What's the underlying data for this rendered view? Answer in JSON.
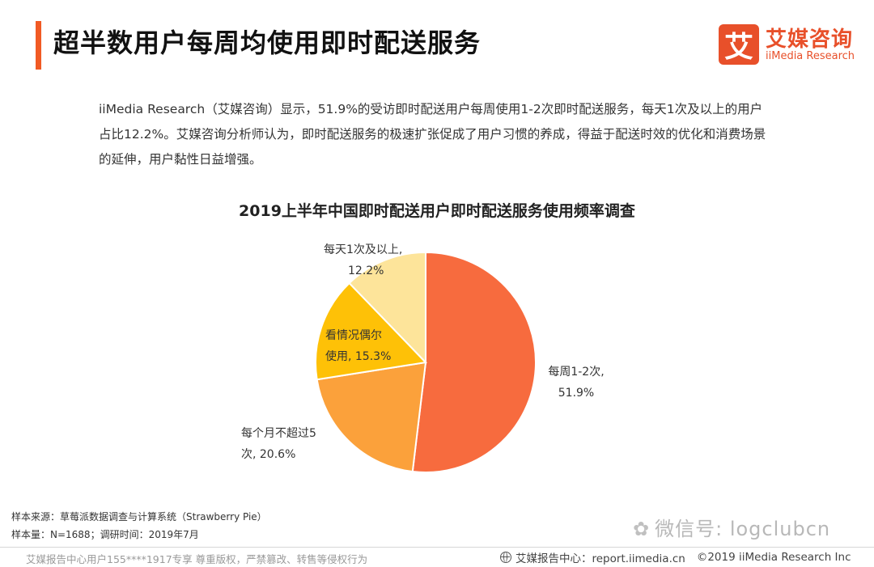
{
  "header": {
    "title": "超半数用户每周均使用即时配送服务",
    "logo_mark": "艾",
    "logo_cn": "艾媒咨询",
    "logo_en": "iiMedia Research"
  },
  "summary": "iiMedia Research（艾媒咨询）显示，51.9%的受访即时配送用户每周使用1-2次即时配送服务，每天1次及以上的用户占比12.2%。艾媒咨询分析师认为，即时配送服务的极速扩张促成了用户习惯的养成，得益于配送时效的优化和消费场景的延伸，用户黏性日益增强。",
  "chart_data": {
    "type": "pie",
    "title": "2019上半年中国即时配送用户即时配送服务使用频率调查",
    "unit": "%",
    "slices": [
      {
        "label": "每周1-2次,",
        "value": 51.9,
        "color": "#f76b3e"
      },
      {
        "label": "每个月不超过5次,",
        "value": 20.6,
        "color": "#fba13b"
      },
      {
        "label": "看情况偶尔使用,",
        "value": 15.3,
        "color": "#fec107"
      },
      {
        "label": "每天1次及以上,",
        "value": 12.2,
        "color": "#fde49a"
      }
    ],
    "data_labels": [
      [
        "每周1-2次,",
        "51.9%"
      ],
      [
        "每个月不超过5",
        "次, 20.6%"
      ],
      [
        "看情况偶尔",
        "使用, 15.3%"
      ],
      [
        "每天1次及以上,",
        "12.2%"
      ]
    ]
  },
  "footnotes": {
    "source": "样本来源：草莓派数据调查与计算系统（Strawberry Pie）",
    "sample": "样本量：N=1688；调研时间：2019年7月"
  },
  "watermark": "微信号: logclubcn",
  "footer": {
    "left": "艾媒报告中心用户155****1917专享 尊重版权，严禁篡改、转售等侵权行为",
    "center": "艾媒报告中心：report.iimedia.cn",
    "right": "©2019  iiMedia Research  Inc"
  }
}
